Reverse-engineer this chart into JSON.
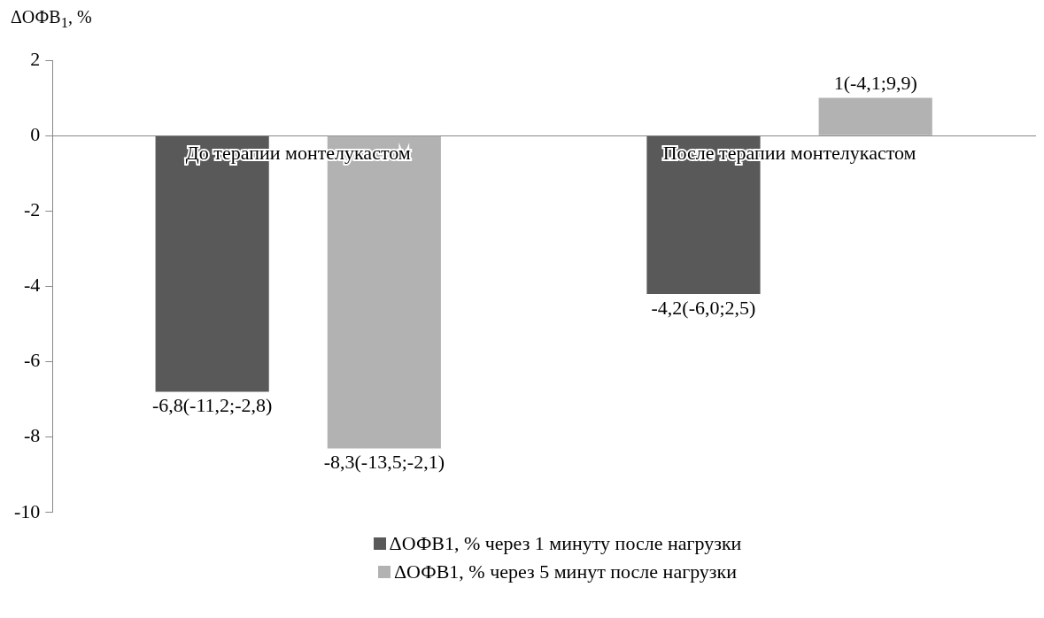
{
  "chart_data": {
    "type": "bar",
    "ylabel": "ΔОФВ$_{1}$, %",
    "categories": [
      "До терапии монтелукастом",
      "После терапии монтелукастом"
    ],
    "series": [
      {
        "name": "ΔОФВ1, % через 1 минуту после нагрузки",
        "color": "#595959",
        "values": [
          -6.8,
          -4.2
        ],
        "value_labels": [
          "-6,8(-11,2;-2,8)",
          "-4,2(-6,0;2,5)"
        ]
      },
      {
        "name": "ΔОФВ1, % через 5 минут после нагрузки",
        "color": "#b2b2b2",
        "values": [
          -8.3,
          1
        ],
        "value_labels": [
          "-8,3(-13,5;-2,1)",
          "1(-4,1;9,9)"
        ]
      }
    ],
    "ylim": [
      -10,
      2
    ],
    "yticks": [
      -10,
      -8,
      -6,
      -4,
      -2,
      0,
      2
    ],
    "grid": false,
    "legend": "bottom"
  }
}
